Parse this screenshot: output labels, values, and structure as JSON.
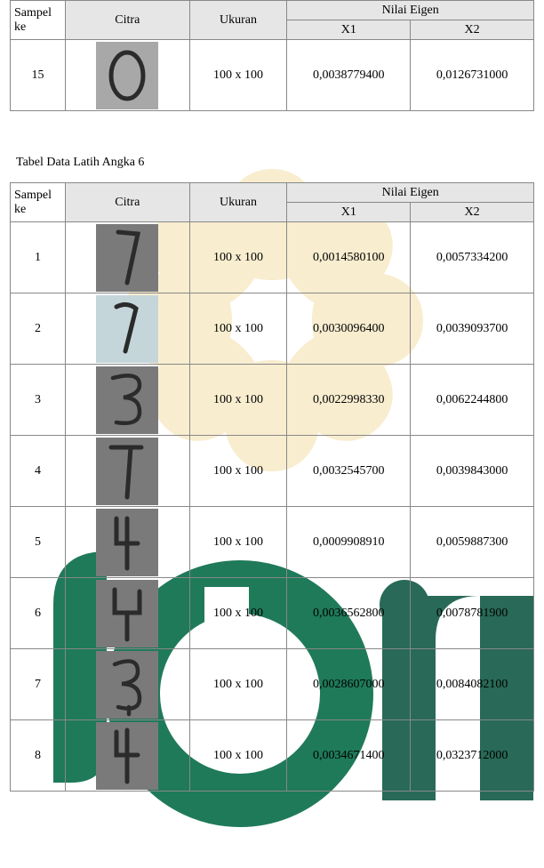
{
  "table1": {
    "headers": {
      "sampel": "Sampel ke",
      "citra": "Citra",
      "ukuran": "Ukuran",
      "eigen": "Nilai Eigen",
      "x1": "X1",
      "x2": "X2"
    },
    "rows": [
      {
        "sampel": "15",
        "ukuran": "100 x 100",
        "x1": "0,0038779400",
        "x2": "0,0126731000",
        "bg": "#a8a8a8",
        "svg": "zero"
      }
    ]
  },
  "caption2": "Tabel Data Latih Angka 6",
  "table2": {
    "headers": {
      "sampel": "Sampel ke",
      "citra": "Citra",
      "ukuran": "Ukuran",
      "eigen": "Nilai Eigen",
      "x1": "X1",
      "x2": "X2"
    },
    "rows": [
      {
        "sampel": "1",
        "ukuran": "100 x 100",
        "x1": "0,0014580100",
        "x2": "0,0057334200",
        "bg": "#7a7a7a",
        "svg": "s1"
      },
      {
        "sampel": "2",
        "ukuran": "100 x 100",
        "x1": "0,0030096400",
        "x2": "0,0039093700",
        "bg": "#c5d6da",
        "svg": "s2"
      },
      {
        "sampel": "3",
        "ukuran": "100 x 100",
        "x1": "0,0022998330",
        "x2": "0,0062244800",
        "bg": "#7a7a7a",
        "svg": "s3"
      },
      {
        "sampel": "4",
        "ukuran": "100 x 100",
        "x1": "0,0032545700",
        "x2": "0,0039843000",
        "bg": "#7a7a7a",
        "svg": "s4"
      },
      {
        "sampel": "5",
        "ukuran": "100 x 100",
        "x1": "0,0009908910",
        "x2": "0,0059887300",
        "bg": "#7a7a7a",
        "svg": "s5"
      },
      {
        "sampel": "6",
        "ukuran": "100 x 100",
        "x1": "0,0036562800",
        "x2": "0,0078781900",
        "bg": "#7a7a7a",
        "svg": "s6"
      },
      {
        "sampel": "7",
        "ukuran": "100 x 100",
        "x1": "0,0028607000",
        "x2": "0,0084082100",
        "bg": "#7a7a7a",
        "svg": "s7"
      },
      {
        "sampel": "8",
        "ukuran": "100 x 100",
        "x1": "0,0034671400",
        "x2": "0,0323712000",
        "bg": "#7a7a7a",
        "svg": "s8"
      }
    ]
  },
  "watermark": {
    "flower_color": "#f3e0a8",
    "flower_opacity": 0.55,
    "logo_green": "#1f7a5a",
    "logo_dark": "#286a57"
  }
}
